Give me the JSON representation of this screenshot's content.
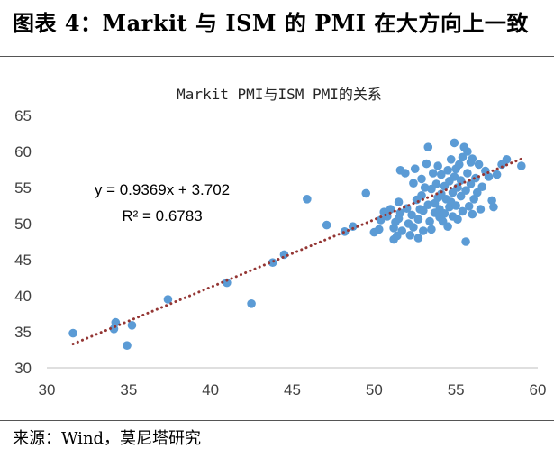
{
  "figure": {
    "title": "图表 4：Markit 与 ISM 的 PMI 在大方向上一致",
    "source": "来源：Wind，莫尼塔研究"
  },
  "chart_data": {
    "type": "scatter",
    "title": "Markit PMI与ISM PMI的关系",
    "xlabel": "",
    "ylabel": "",
    "xlim": [
      30,
      60
    ],
    "ylim": [
      30,
      65
    ],
    "xticks": [
      "30",
      "35",
      "40",
      "45",
      "50",
      "55",
      "60"
    ],
    "yticks": [
      "30",
      "35",
      "40",
      "45",
      "50",
      "55",
      "60",
      "65"
    ],
    "grid": false,
    "legend": "none",
    "marker_color": "#5b9bd5",
    "trendline": {
      "type": "linear",
      "slope": 0.9369,
      "intercept": 3.702,
      "x_range": [
        31.6,
        59
      ],
      "style": "dotted",
      "color": "#943634",
      "equation": "y = 0.9369x + 3.702",
      "r2": "R² = 0.6783"
    },
    "points": [
      [
        31.6,
        34.8
      ],
      [
        34.1,
        35.4
      ],
      [
        34.2,
        36.3
      ],
      [
        34.9,
        33.1
      ],
      [
        35.2,
        35.9
      ],
      [
        37.4,
        39.5
      ],
      [
        41.0,
        41.8
      ],
      [
        42.5,
        38.9
      ],
      [
        43.8,
        44.6
      ],
      [
        44.5,
        45.7
      ],
      [
        45.9,
        53.4
      ],
      [
        47.1,
        49.8
      ],
      [
        48.2,
        48.9
      ],
      [
        48.7,
        49.6
      ],
      [
        49.5,
        54.2
      ],
      [
        50.0,
        48.8
      ],
      [
        50.3,
        49.2
      ],
      [
        50.4,
        50.5
      ],
      [
        50.6,
        51.6
      ],
      [
        50.8,
        51.0
      ],
      [
        51.0,
        52.0
      ],
      [
        51.2,
        49.4
      ],
      [
        51.3,
        50.2
      ],
      [
        51.2,
        47.8
      ],
      [
        51.4,
        48.3
      ],
      [
        51.5,
        50.7
      ],
      [
        51.5,
        53.0
      ],
      [
        51.6,
        51.5
      ],
      [
        51.6,
        57.4
      ],
      [
        51.7,
        49.0
      ],
      [
        51.9,
        57.0
      ],
      [
        52.0,
        52.1
      ],
      [
        52.1,
        50.0
      ],
      [
        52.2,
        48.4
      ],
      [
        52.3,
        51.2
      ],
      [
        52.4,
        49.5
      ],
      [
        52.4,
        55.6
      ],
      [
        52.5,
        57.6
      ],
      [
        52.6,
        53.3
      ],
      [
        52.7,
        48.0
      ],
      [
        52.7,
        50.6
      ],
      [
        52.8,
        52.0
      ],
      [
        52.9,
        53.9
      ],
      [
        52.9,
        56.2
      ],
      [
        53.0,
        49.0
      ],
      [
        53.0,
        51.8
      ],
      [
        53.1,
        55.0
      ],
      [
        53.2,
        58.3
      ],
      [
        53.3,
        60.6
      ],
      [
        53.3,
        52.6
      ],
      [
        53.4,
        50.3
      ],
      [
        53.5,
        49.2
      ],
      [
        53.5,
        54.8
      ],
      [
        53.6,
        57.0
      ],
      [
        53.7,
        51.5
      ],
      [
        53.7,
        52.8
      ],
      [
        53.8,
        55.5
      ],
      [
        53.9,
        53.6
      ],
      [
        53.9,
        58.0
      ],
      [
        54.0,
        50.9
      ],
      [
        54.0,
        52.0
      ],
      [
        54.1,
        54.1
      ],
      [
        54.1,
        56.8
      ],
      [
        54.2,
        50.3
      ],
      [
        54.3,
        55.2
      ],
      [
        54.3,
        51.4
      ],
      [
        54.4,
        53.4
      ],
      [
        54.5,
        57.4
      ],
      [
        54.5,
        49.6
      ],
      [
        54.6,
        52.3
      ],
      [
        54.6,
        55.9
      ],
      [
        54.7,
        53.0
      ],
      [
        54.7,
        58.9
      ],
      [
        54.8,
        51.0
      ],
      [
        54.8,
        54.3
      ],
      [
        54.9,
        56.5
      ],
      [
        54.9,
        61.2
      ],
      [
        55.0,
        52.5
      ],
      [
        55.0,
        57.6
      ],
      [
        55.1,
        50.6
      ],
      [
        55.1,
        55.0
      ],
      [
        55.2,
        58.2
      ],
      [
        55.3,
        53.8
      ],
      [
        55.3,
        56.0
      ],
      [
        55.4,
        59.2
      ],
      [
        55.4,
        51.7
      ],
      [
        55.5,
        60.6
      ],
      [
        55.6,
        47.5
      ],
      [
        55.6,
        54.6
      ],
      [
        55.7,
        57.0
      ],
      [
        55.7,
        60.0
      ],
      [
        55.8,
        52.4
      ],
      [
        55.9,
        58.5
      ],
      [
        55.9,
        55.5
      ],
      [
        56.0,
        51.3
      ],
      [
        56.0,
        59.0
      ],
      [
        56.1,
        53.4
      ],
      [
        56.2,
        56.3
      ],
      [
        56.3,
        54.3
      ],
      [
        56.4,
        58.2
      ],
      [
        56.5,
        52.0
      ],
      [
        56.6,
        55.1
      ],
      [
        56.8,
        57.3
      ],
      [
        57.0,
        56.5
      ],
      [
        57.2,
        53.2
      ],
      [
        57.3,
        52.3
      ],
      [
        57.5,
        56.8
      ],
      [
        57.8,
        58.2
      ],
      [
        58.1,
        58.9
      ],
      [
        59.0,
        58.0
      ]
    ]
  }
}
